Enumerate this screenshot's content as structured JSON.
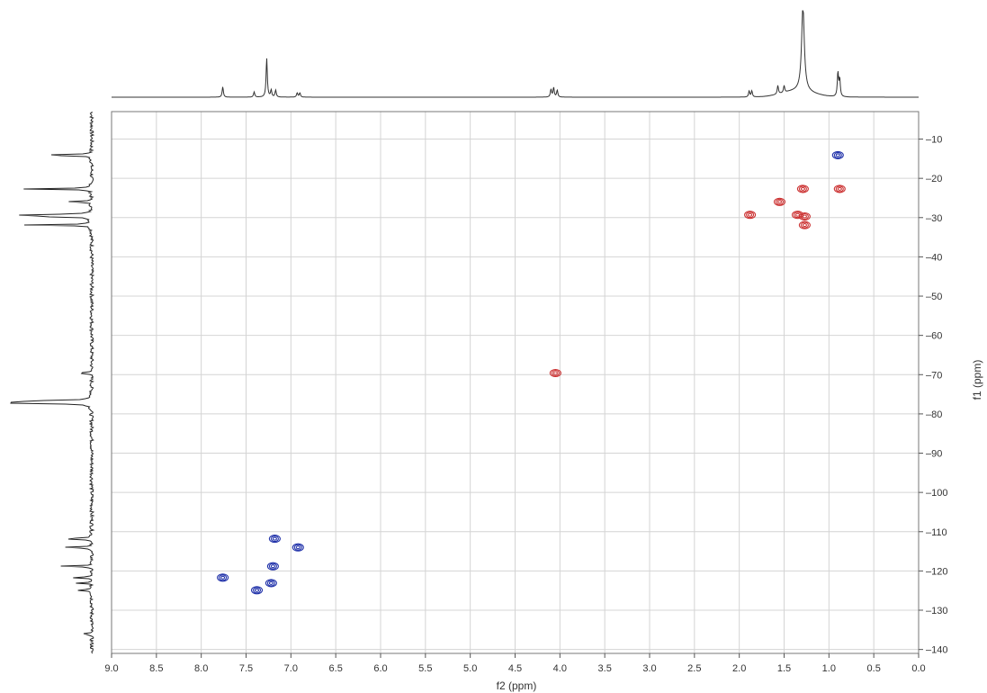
{
  "chart_data": {
    "type": "scatter",
    "title": "",
    "xlabel": "f2 (ppm)",
    "ylabel": "f1 (ppm)",
    "x_reversed": true,
    "y_reversed": true,
    "xlim": [
      9.0,
      0.0
    ],
    "ylim": [
      3,
      141
    ],
    "x_ticks": [
      "9.0",
      "8.5",
      "8.0",
      "7.5",
      "7.0",
      "6.5",
      "6.0",
      "5.5",
      "5.0",
      "4.5",
      "4.0",
      "3.5",
      "3.0",
      "2.5",
      "2.0",
      "1.5",
      "1.0",
      "0.5",
      "0.0"
    ],
    "y_ticks": [
      "10",
      "20",
      "30",
      "40",
      "50",
      "60",
      "70",
      "80",
      "90",
      "100",
      "110",
      "120",
      "130",
      "140"
    ],
    "grid": true,
    "series": [
      {
        "color": "#2233aa",
        "points": [
          {
            "x": 0.9,
            "y": 14.1
          },
          {
            "x": 7.18,
            "y": 111.8
          },
          {
            "x": 6.92,
            "y": 114.0
          },
          {
            "x": 7.2,
            "y": 118.8
          },
          {
            "x": 7.76,
            "y": 121.7
          },
          {
            "x": 7.22,
            "y": 123.1
          },
          {
            "x": 7.38,
            "y": 124.9
          }
        ]
      },
      {
        "color": "#cc3333",
        "points": [
          {
            "x": 1.29,
            "y": 22.7
          },
          {
            "x": 0.88,
            "y": 22.7
          },
          {
            "x": 1.55,
            "y": 26.0
          },
          {
            "x": 1.88,
            "y": 29.3
          },
          {
            "x": 1.35,
            "y": 29.3
          },
          {
            "x": 1.27,
            "y": 29.7
          },
          {
            "x": 1.27,
            "y": 31.9
          },
          {
            "x": 4.05,
            "y": 69.6
          }
        ]
      }
    ],
    "projection_top": {
      "axis": "f2",
      "peaks": [
        {
          "x": 7.76,
          "h": 0.12
        },
        {
          "x": 7.41,
          "h": 0.06
        },
        {
          "x": 7.27,
          "h": 0.45
        },
        {
          "x": 7.22,
          "h": 0.08
        },
        {
          "x": 7.17,
          "h": 0.08
        },
        {
          "x": 6.93,
          "h": 0.05
        },
        {
          "x": 6.9,
          "h": 0.05
        },
        {
          "x": 4.1,
          "h": 0.09
        },
        {
          "x": 4.07,
          "h": 0.11
        },
        {
          "x": 4.03,
          "h": 0.08
        },
        {
          "x": 1.89,
          "h": 0.07
        },
        {
          "x": 1.86,
          "h": 0.07
        },
        {
          "x": 1.57,
          "h": 0.1
        },
        {
          "x": 1.5,
          "h": 0.08
        },
        {
          "x": 1.29,
          "h": 1.0
        },
        {
          "x": 0.9,
          "h": 0.28
        },
        {
          "x": 0.88,
          "h": 0.2
        }
      ]
    },
    "projection_left": {
      "axis": "f1",
      "peaks": [
        {
          "y": 14.1,
          "h": 0.85
        },
        {
          "y": 22.7,
          "h": 0.88
        },
        {
          "y": 26.0,
          "h": 0.38
        },
        {
          "y": 29.3,
          "h": 0.99
        },
        {
          "y": 29.7,
          "h": 1.0
        },
        {
          "y": 31.9,
          "h": 0.85
        },
        {
          "y": 69.6,
          "h": 0.2
        },
        {
          "y": 76.7,
          "h": 0.98
        },
        {
          "y": 77.0,
          "h": 0.98
        },
        {
          "y": 77.3,
          "h": 0.98
        },
        {
          "y": 111.8,
          "h": 0.45
        },
        {
          "y": 114.0,
          "h": 0.4
        },
        {
          "y": 118.8,
          "h": 0.4
        },
        {
          "y": 121.7,
          "h": 0.28
        },
        {
          "y": 123.1,
          "h": 0.18
        },
        {
          "y": 124.9,
          "h": 0.2
        },
        {
          "y": 136.0,
          "h": 0.14
        }
      ]
    }
  }
}
